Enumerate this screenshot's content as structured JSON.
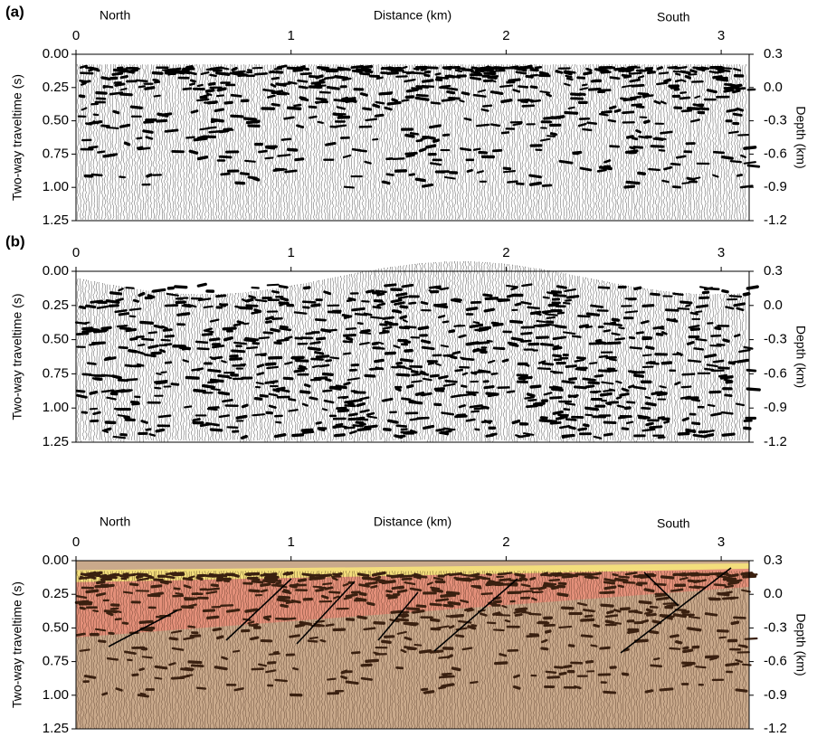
{
  "chart_data": [
    {
      "type": "seismic",
      "panel_label": "(a)",
      "x_label": "Distance (km)",
      "left_annotation": "North",
      "right_annotation": "South",
      "y_label": "Two-way traveltime (s)",
      "y2_label": "Depth (km)",
      "xlim": [
        0,
        3.13
      ],
      "xticks": [
        0,
        1,
        2,
        3
      ],
      "ylim": [
        0,
        1.25
      ],
      "y_inverted": true,
      "yticks": [
        {
          "value": 0,
          "label": "0.00"
        },
        0.25,
        {
          "value": 0.5,
          "label": "0.50"
        },
        0.75,
        {
          "value": 1,
          "label": "1.00"
        },
        1.25
      ],
      "y2lim": [
        -1.2,
        0.3
      ],
      "y2ticks": [
        0.3,
        {
          "value": 0,
          "label": "0.0"
        },
        -0.3,
        -0.6,
        -0.9,
        -1.2
      ]
    },
    {
      "type": "seismic",
      "panel_label": "(b)",
      "y_label": "Two-way traveltime (s)",
      "y2_label": "Depth (km)",
      "xlim": [
        0,
        3.13
      ],
      "xticks": [
        0,
        1,
        2,
        3
      ],
      "ylim": [
        0,
        1.25
      ],
      "y_inverted": true,
      "yticks": [
        {
          "value": 0,
          "label": "0.00"
        },
        0.25,
        {
          "value": 0.5,
          "label": "0.50"
        },
        0.75,
        {
          "value": 1,
          "label": "1.00"
        },
        1.25
      ],
      "y2lim": [
        -1.2,
        0.3
      ],
      "y2ticks": [
        0.3,
        {
          "value": 0,
          "label": "0.0"
        },
        -0.3,
        -0.6,
        -0.9,
        -1.2
      ]
    },
    {
      "type": "seismic",
      "x_label": "Distance (km)",
      "left_annotation": "North",
      "right_annotation": "South",
      "y_label": "Two-way traveltime (s)",
      "y2_label": "Depth (km)",
      "xlim": [
        0,
        3.13
      ],
      "xticks": [
        0,
        1,
        2,
        3
      ],
      "ylim": [
        0,
        1.25
      ],
      "y_inverted": true,
      "yticks": [
        {
          "value": 0,
          "label": "0.00"
        },
        0.25,
        {
          "value": 0.5,
          "label": "0.50"
        },
        0.75,
        {
          "value": 1,
          "label": "1.00"
        },
        1.25
      ],
      "y2lim": [
        -1.2,
        0.3
      ],
      "y2ticks": [
        0.3,
        {
          "value": 0,
          "label": "0.0"
        },
        -0.3,
        -0.6,
        -0.9,
        -1.2
      ]
    }
  ]
}
